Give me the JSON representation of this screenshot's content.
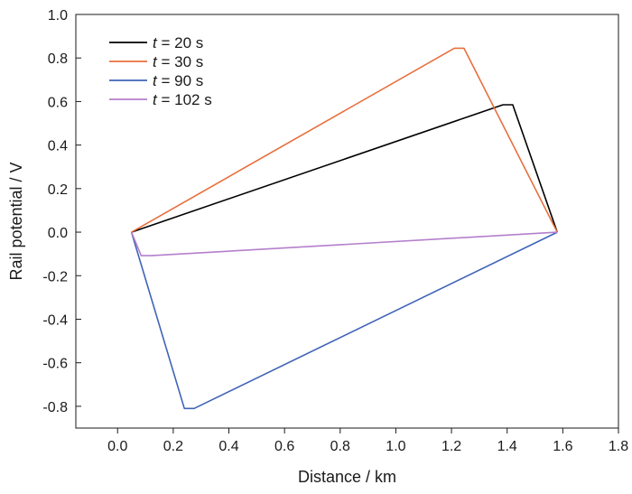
{
  "chart_data": {
    "type": "line",
    "title": "",
    "xlabel": "Distance / km",
    "ylabel": "Rail potential / V",
    "xlim": [
      -0.15,
      1.8
    ],
    "ylim": [
      -0.9,
      1.0
    ],
    "xticks": [
      "0.0",
      "0.2",
      "0.4",
      "0.6",
      "0.8",
      "1.0",
      "1.2",
      "1.4",
      "1.6",
      "1.8"
    ],
    "xtick_values": [
      0.0,
      0.2,
      0.4,
      0.6,
      0.8,
      1.0,
      1.2,
      1.4,
      1.6,
      1.8
    ],
    "yticks": [
      "1.0",
      "0.8",
      "0.6",
      "0.4",
      "0.2",
      "0.0",
      "-0.2",
      "-0.4",
      "-0.6",
      "-0.8"
    ],
    "ytick_values": [
      1.0,
      0.8,
      0.6,
      0.4,
      0.2,
      0.0,
      -0.2,
      -0.4,
      -0.6,
      -0.8
    ],
    "grid": false,
    "legend_position": "top-left",
    "series": [
      {
        "name": "t = 20 s",
        "legend_var": "t",
        "legend_rest": " = 20 s",
        "color": "#000000",
        "x": [
          0.05,
          1.385,
          1.42,
          1.58
        ],
        "y": [
          0.0,
          0.585,
          0.585,
          0.0
        ]
      },
      {
        "name": "t = 30 s",
        "legend_var": "t",
        "legend_rest": " = 30 s",
        "color": "#e8703e",
        "x": [
          0.05,
          1.21,
          1.245,
          1.58
        ],
        "y": [
          0.0,
          0.845,
          0.845,
          0.0
        ]
      },
      {
        "name": "t = 90 s",
        "legend_var": "t",
        "legend_rest": " = 90 s",
        "color": "#3f64b7",
        "x": [
          0.05,
          0.24,
          0.275,
          1.58
        ],
        "y": [
          0.0,
          -0.81,
          -0.81,
          0.0
        ]
      },
      {
        "name": "t = 102 s",
        "legend_var": "t",
        "legend_rest": " = 102 s",
        "color": "#b47fcc",
        "x": [
          0.05,
          0.085,
          0.12,
          1.58
        ],
        "y": [
          0.0,
          -0.108,
          -0.108,
          0.0
        ]
      }
    ]
  }
}
